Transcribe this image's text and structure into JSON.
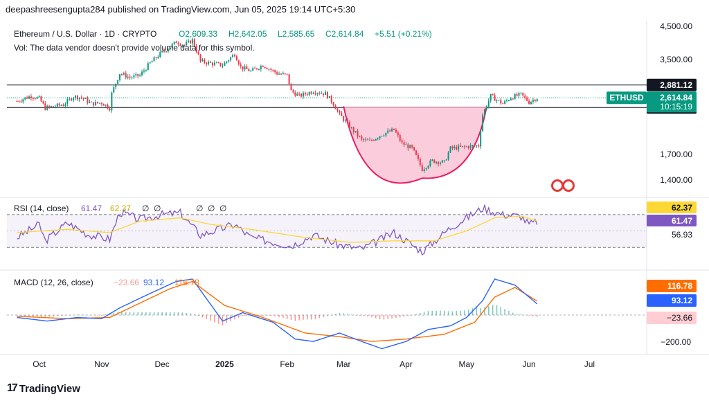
{
  "header": {
    "publisher_line": "deepashreesengupta284 published on TradingView.com, Jun 05, 2025 19:14 UTC+5:30"
  },
  "footer": {
    "brand": "TradingView"
  },
  "colors": {
    "up": "#089981",
    "down": "#f23645",
    "bowl_fill": "#f8bbd0",
    "bowl_stroke": "#e91e63",
    "rsi": "#7e57c2",
    "rsi_ma": "#fdd835",
    "macd": "#2962ff",
    "signal": "#ff6d00",
    "price_label": "#089981"
  },
  "chart_data": [
    {
      "type": "candlestick",
      "title": "Ethereum / U.S. Dollar · 1D · CRYPTO",
      "ohlc_label": {
        "o": "O2,609.33",
        "h": "H2,642.05",
        "l": "L2,585.65",
        "c": "C2,614.84",
        "chg": "+5.51 (+0.21%)"
      },
      "volume_note": "Vol: The data vendor doesn't provide volume data for this symbol.",
      "symbol": "ETHUSD",
      "last_price": "2,614.84",
      "countdown": "10:15:19",
      "levels": [
        "2,881.12",
        "2,429.29"
      ],
      "level_values": [
        2881.12,
        2429.29
      ],
      "y_ticks": [
        "4,500.00",
        "3,500.00",
        "1,700.00",
        "1,400.00"
      ],
      "y_tick_values": [
        4500,
        3500,
        1700,
        1400
      ],
      "scale": "log",
      "x_ticks": [
        "Oct",
        "Nov",
        "Dec",
        "2025",
        "Feb",
        "Mar",
        "Apr",
        "May",
        "Jun",
        "Jul"
      ],
      "close_series": [
        [
          "2024-09-20",
          2550
        ],
        [
          "2024-09-27",
          2650
        ],
        [
          "2024-10-01",
          2600
        ],
        [
          "2024-10-04",
          2420
        ],
        [
          "2024-10-08",
          2450
        ],
        [
          "2024-10-13",
          2480
        ],
        [
          "2024-10-18",
          2640
        ],
        [
          "2024-10-22",
          2620
        ],
        [
          "2024-10-27",
          2500
        ],
        [
          "2024-11-01",
          2520
        ],
        [
          "2024-11-05",
          2420
        ],
        [
          "2024-11-06",
          2700
        ],
        [
          "2024-11-10",
          3150
        ],
        [
          "2024-11-15",
          3050
        ],
        [
          "2024-11-20",
          3100
        ],
        [
          "2024-11-25",
          3400
        ],
        [
          "2024-11-30",
          3650
        ],
        [
          "2024-12-05",
          3850
        ],
        [
          "2024-12-08",
          4000
        ],
        [
          "2024-12-12",
          3900
        ],
        [
          "2024-12-16",
          4050
        ],
        [
          "2024-12-20",
          3450
        ],
        [
          "2024-12-25",
          3400
        ],
        [
          "2024-12-31",
          3350
        ],
        [
          "2025-01-06",
          3650
        ],
        [
          "2025-01-09",
          3300
        ],
        [
          "2025-01-14",
          3200
        ],
        [
          "2025-01-20",
          3350
        ],
        [
          "2025-01-27",
          3150
        ],
        [
          "2025-02-01",
          3100
        ],
        [
          "2025-02-03",
          2750
        ],
        [
          "2025-02-07",
          2650
        ],
        [
          "2025-02-14",
          2750
        ],
        [
          "2025-02-20",
          2700
        ],
        [
          "2025-02-24",
          2500
        ],
        [
          "2025-02-27",
          2300
        ],
        [
          "2025-03-04",
          2100
        ],
        [
          "2025-03-10",
          1900
        ],
        [
          "2025-03-14",
          1880
        ],
        [
          "2025-03-20",
          1980
        ],
        [
          "2025-03-26",
          2050
        ],
        [
          "2025-03-30",
          1850
        ],
        [
          "2025-04-04",
          1780
        ],
        [
          "2025-04-09",
          1520
        ],
        [
          "2025-04-14",
          1620
        ],
        [
          "2025-04-20",
          1600
        ],
        [
          "2025-04-23",
          1780
        ],
        [
          "2025-04-30",
          1800
        ],
        [
          "2025-05-07",
          1820
        ],
        [
          "2025-05-09",
          2300
        ],
        [
          "2025-05-13",
          2650
        ],
        [
          "2025-05-19",
          2500
        ],
        [
          "2025-05-23",
          2620
        ],
        [
          "2025-05-28",
          2680
        ],
        [
          "2025-06-01",
          2530
        ],
        [
          "2025-06-05",
          2614.84
        ]
      ],
      "cup_pattern": {
        "left": [
          "2025-03-01",
          2450
        ],
        "bottom": [
          "2025-04-09",
          1420
        ],
        "right": [
          "2025-05-11",
          2450
        ]
      }
    },
    {
      "type": "line",
      "title": "RSI (14, close)",
      "values_label": [
        "61.47",
        "62.37"
      ],
      "extra_labels": [
        "∅",
        "∅",
        "∅",
        "∅",
        "∅"
      ],
      "y_ticks": [
        "56.93"
      ],
      "right_labels": [
        "62.37",
        "61.47",
        "56.93"
      ],
      "band": [
        30,
        70
      ],
      "series": [
        {
          "name": "RSI",
          "points": [
            [
              "2024-09-20",
              42
            ],
            [
              "2024-10-01",
              58
            ],
            [
              "2024-10-04",
              38
            ],
            [
              "2024-10-15",
              60
            ],
            [
              "2024-10-25",
              46
            ],
            [
              "2024-11-05",
              40
            ],
            [
              "2024-11-10",
              73
            ],
            [
              "2024-11-20",
              64
            ],
            [
              "2024-12-01",
              70
            ],
            [
              "2024-12-10",
              72
            ],
            [
              "2024-12-20",
              45
            ],
            [
              "2025-01-06",
              58
            ],
            [
              "2025-01-14",
              42
            ],
            [
              "2025-02-03",
              32
            ],
            [
              "2025-02-14",
              45
            ],
            [
              "2025-02-27",
              33
            ],
            [
              "2025-03-10",
              28
            ],
            [
              "2025-03-26",
              48
            ],
            [
              "2025-04-09",
              25
            ],
            [
              "2025-04-23",
              54
            ],
            [
              "2025-05-09",
              78
            ],
            [
              "2025-05-19",
              70
            ],
            [
              "2025-05-28",
              68
            ],
            [
              "2025-06-01",
              58
            ],
            [
              "2025-06-05",
              61.47
            ]
          ]
        },
        {
          "name": "RSI-based MA",
          "points": [
            [
              "2024-09-20",
              48
            ],
            [
              "2024-10-15",
              52
            ],
            [
              "2024-11-05",
              48
            ],
            [
              "2024-11-20",
              62
            ],
            [
              "2024-12-10",
              66
            ],
            [
              "2024-12-25",
              58
            ],
            [
              "2025-01-14",
              52
            ],
            [
              "2025-02-10",
              42
            ],
            [
              "2025-03-05",
              36
            ],
            [
              "2025-03-26",
              38
            ],
            [
              "2025-04-15",
              38
            ],
            [
              "2025-05-01",
              50
            ],
            [
              "2025-05-15",
              66
            ],
            [
              "2025-05-28",
              68
            ],
            [
              "2025-06-05",
              62.37
            ]
          ]
        }
      ]
    },
    {
      "type": "line",
      "title": "MACD (12, 26, close)",
      "values_label": [
        "−23.66",
        "93.12",
        "116.78"
      ],
      "y_ticks": [
        "−200.00"
      ],
      "right_labels": [
        "116.78",
        "93.12",
        "−23.66"
      ],
      "series": [
        {
          "name": "MACD",
          "points": [
            [
              "2024-09-20",
              -20
            ],
            [
              "2024-10-05",
              -50
            ],
            [
              "2024-10-20",
              -20
            ],
            [
              "2024-11-01",
              -30
            ],
            [
              "2024-11-10",
              60
            ],
            [
              "2024-11-25",
              180
            ],
            [
              "2024-12-08",
              280
            ],
            [
              "2024-12-16",
              300
            ],
            [
              "2024-12-31",
              -50
            ],
            [
              "2025-01-10",
              20
            ],
            [
              "2025-01-25",
              -60
            ],
            [
              "2025-02-05",
              -200
            ],
            [
              "2025-02-14",
              -220
            ],
            [
              "2025-02-27",
              -150
            ],
            [
              "2025-03-10",
              -220
            ],
            [
              "2025-03-20",
              -280
            ],
            [
              "2025-04-01",
              -220
            ],
            [
              "2025-04-12",
              -120
            ],
            [
              "2025-04-23",
              -90
            ],
            [
              "2025-05-01",
              -20
            ],
            [
              "2025-05-09",
              120
            ],
            [
              "2025-05-15",
              300
            ],
            [
              "2025-05-25",
              250
            ],
            [
              "2025-06-05",
              93.12
            ]
          ]
        },
        {
          "name": "Signal",
          "points": [
            [
              "2024-09-20",
              -10
            ],
            [
              "2024-10-15",
              -30
            ],
            [
              "2024-11-05",
              -20
            ],
            [
              "2024-11-20",
              100
            ],
            [
              "2024-12-05",
              220
            ],
            [
              "2024-12-16",
              280
            ],
            [
              "2025-01-01",
              80
            ],
            [
              "2025-01-20",
              -20
            ],
            [
              "2025-02-10",
              -150
            ],
            [
              "2025-02-27",
              -180
            ],
            [
              "2025-03-15",
              -220
            ],
            [
              "2025-04-01",
              -200
            ],
            [
              "2025-04-20",
              -160
            ],
            [
              "2025-05-05",
              -60
            ],
            [
              "2025-05-15",
              150
            ],
            [
              "2025-05-25",
              230
            ],
            [
              "2025-06-05",
              116.78
            ]
          ]
        }
      ],
      "histogram_last": -23.66
    }
  ]
}
